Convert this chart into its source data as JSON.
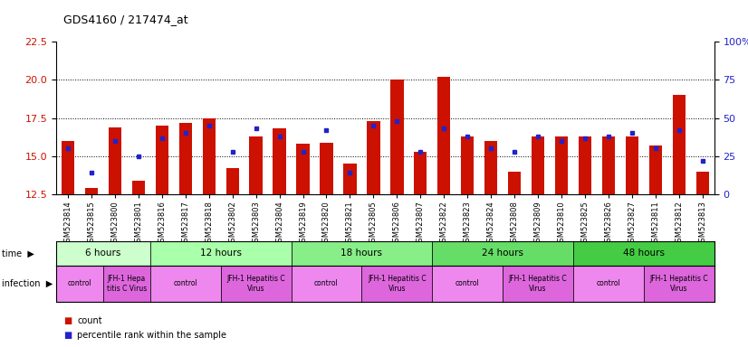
{
  "title": "GDS4160 / 217474_at",
  "samples": [
    "GSM523814",
    "GSM523815",
    "GSM523800",
    "GSM523801",
    "GSM523816",
    "GSM523817",
    "GSM523818",
    "GSM523802",
    "GSM523803",
    "GSM523804",
    "GSM523819",
    "GSM523820",
    "GSM523821",
    "GSM523805",
    "GSM523806",
    "GSM523807",
    "GSM523822",
    "GSM523823",
    "GSM523824",
    "GSM523808",
    "GSM523809",
    "GSM523810",
    "GSM523825",
    "GSM523826",
    "GSM523827",
    "GSM523811",
    "GSM523812",
    "GSM523813"
  ],
  "counts": [
    16.0,
    12.9,
    16.9,
    13.4,
    17.0,
    17.2,
    17.5,
    14.2,
    16.3,
    16.8,
    15.8,
    15.9,
    14.5,
    17.3,
    20.0,
    15.3,
    20.2,
    16.3,
    16.0,
    14.0,
    16.3,
    16.3,
    16.3,
    16.3,
    16.3,
    15.7,
    19.0,
    14.0
  ],
  "percentiles": [
    30,
    14,
    35,
    25,
    37,
    40,
    45,
    28,
    43,
    38,
    28,
    42,
    14,
    45,
    48,
    28,
    43,
    38,
    30,
    28,
    38,
    35,
    37,
    38,
    40,
    30,
    42,
    22
  ],
  "ylim_left": [
    12.5,
    22.5
  ],
  "ylim_right": [
    0,
    100
  ],
  "yticks_left": [
    12.5,
    15.0,
    17.5,
    20.0,
    22.5
  ],
  "yticks_right": [
    0,
    25,
    50,
    75,
    100
  ],
  "bar_color": "#cc1100",
  "dot_color": "#2222cc",
  "time_groups": [
    {
      "label": "6 hours",
      "start": 0,
      "end": 4,
      "color": "#ccffcc"
    },
    {
      "label": "12 hours",
      "start": 4,
      "end": 10,
      "color": "#aaffaa"
    },
    {
      "label": "18 hours",
      "start": 10,
      "end": 16,
      "color": "#88ee88"
    },
    {
      "label": "24 hours",
      "start": 16,
      "end": 22,
      "color": "#66dd66"
    },
    {
      "label": "48 hours",
      "start": 22,
      "end": 28,
      "color": "#44cc44"
    }
  ],
  "infection_groups": [
    {
      "label": "control",
      "start": 0,
      "end": 2,
      "color": "#ee88ee"
    },
    {
      "label": "JFH-1 Hepa\ntitis C Virus",
      "start": 2,
      "end": 4,
      "color": "#dd66dd"
    },
    {
      "label": "control",
      "start": 4,
      "end": 7,
      "color": "#ee88ee"
    },
    {
      "label": "JFH-1 Hepatitis C\nVirus",
      "start": 7,
      "end": 10,
      "color": "#dd66dd"
    },
    {
      "label": "control",
      "start": 10,
      "end": 13,
      "color": "#ee88ee"
    },
    {
      "label": "JFH-1 Hepatitis C\nVirus",
      "start": 13,
      "end": 16,
      "color": "#dd66dd"
    },
    {
      "label": "control",
      "start": 16,
      "end": 19,
      "color": "#ee88ee"
    },
    {
      "label": "JFH-1 Hepatitis C\nVirus",
      "start": 19,
      "end": 22,
      "color": "#dd66dd"
    },
    {
      "label": "control",
      "start": 22,
      "end": 25,
      "color": "#ee88ee"
    },
    {
      "label": "JFH-1 Hepatitis C\nVirus",
      "start": 25,
      "end": 28,
      "color": "#dd66dd"
    }
  ],
  "bg_color": "#ffffff",
  "grid_color": "#888888",
  "left_tick_color": "#cc1100",
  "right_tick_color": "#2222cc",
  "right_tick_labels": [
    "0",
    "25",
    "50",
    "75",
    "100%"
  ]
}
